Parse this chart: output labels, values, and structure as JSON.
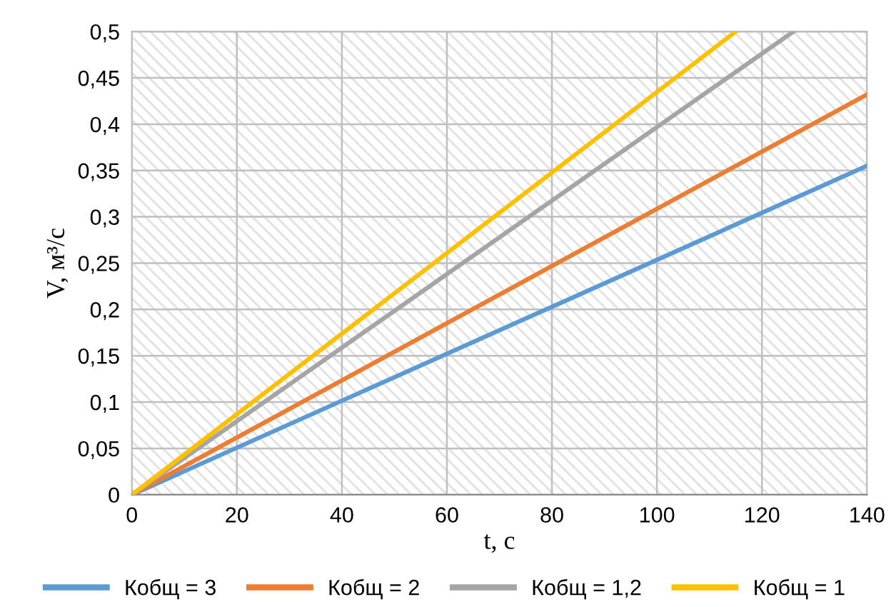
{
  "chart_data": {
    "type": "line",
    "xlabel": "t, с",
    "ylabel": "V, м³/с",
    "series": [
      {
        "name": "Кобщ = 3",
        "color": "#5b9bd5",
        "x": [
          0,
          140
        ],
        "values": [
          0,
          0.355
        ]
      },
      {
        "name": "Кобщ = 2",
        "color": "#ed7d31",
        "x": [
          0,
          140
        ],
        "values": [
          0,
          0.432
        ]
      },
      {
        "name": "Кобщ = 1,2",
        "color": "#a5a5a5",
        "x": [
          0,
          126
        ],
        "values": [
          0,
          0.5
        ]
      },
      {
        "name": "Кобщ = 1",
        "color": "#ffc000",
        "x": [
          0,
          115
        ],
        "values": [
          0,
          0.5
        ]
      }
    ],
    "xlim": [
      0,
      140
    ],
    "xticks": [
      0,
      20,
      40,
      60,
      80,
      100,
      120,
      140
    ],
    "ylim": [
      0,
      0.5
    ],
    "yticks": [
      {
        "value": 0,
        "label": "0"
      },
      {
        "value": 0.05,
        "label": "0,05"
      },
      {
        "value": 0.1,
        "label": "0,1"
      },
      {
        "value": 0.15,
        "label": "0,15"
      },
      {
        "value": 0.2,
        "label": "0,2"
      },
      {
        "value": 0.25,
        "label": "0,25"
      },
      {
        "value": 0.3,
        "label": "0,3"
      },
      {
        "value": 0.35,
        "label": "0,35"
      },
      {
        "value": 0.4,
        "label": "0,4"
      },
      {
        "value": 0.45,
        "label": "0,45"
      },
      {
        "value": 0.5,
        "label": "0,5"
      }
    ],
    "grid": true,
    "legend": "bottom",
    "marker": "none",
    "line_style": "solid"
  }
}
